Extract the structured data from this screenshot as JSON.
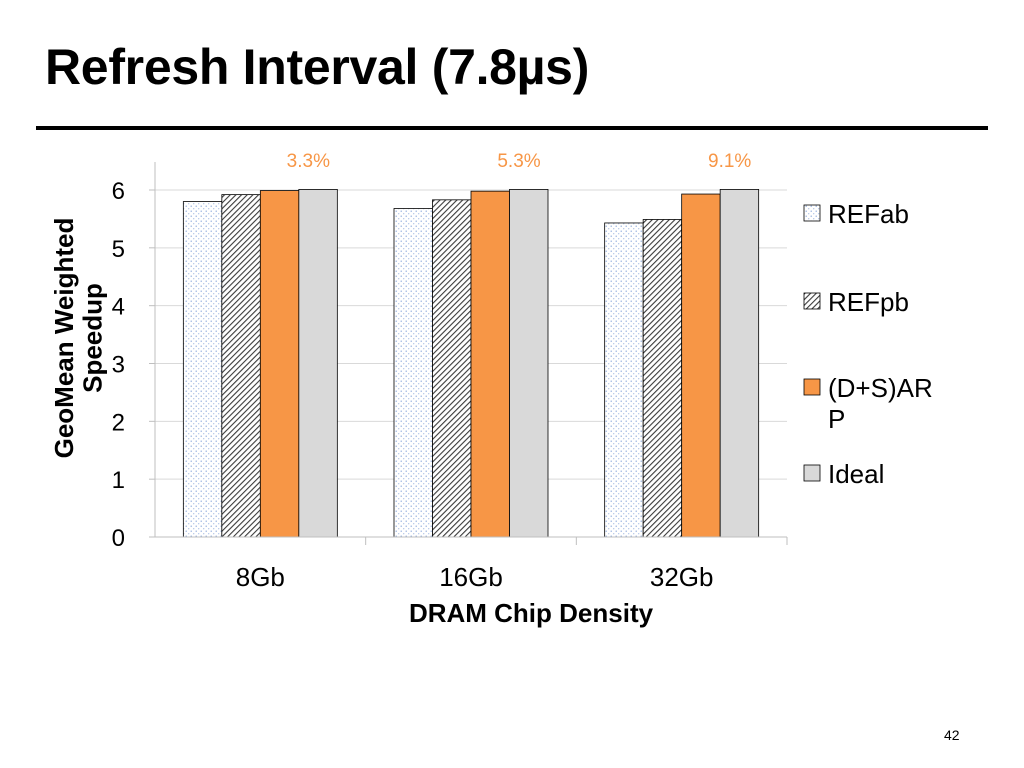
{
  "slide": {
    "title": "Refresh Interval (7.8µs)",
    "page_number": "42"
  },
  "colors": {
    "accent": "#f79646",
    "ideal": "#d9d9d9",
    "annotation": "#f79646"
  },
  "chart_data": {
    "type": "bar",
    "title": "",
    "xlabel": "DRAM Chip Density",
    "ylabel": "GeoMean Weighted Speedup",
    "categories": [
      "8Gb",
      "16Gb",
      "32Gb"
    ],
    "ylim": [
      0,
      6
    ],
    "yticks": [
      "0",
      "1",
      "2",
      "3",
      "4",
      "5",
      "6"
    ],
    "grid": true,
    "legend_position": "right",
    "series": [
      {
        "name": "REFab",
        "values": [
          5.8,
          5.68,
          5.43
        ],
        "pattern": "dots",
        "color": "#dbe5f1"
      },
      {
        "name": "REFpb",
        "values": [
          5.92,
          5.83,
          5.49
        ],
        "pattern": "hatch",
        "color": "#595959"
      },
      {
        "name": "(D+S)ARP",
        "values": [
          5.99,
          5.98,
          5.93
        ],
        "pattern": "solid",
        "color": "#f79646"
      },
      {
        "name": "Ideal",
        "values": [
          6.01,
          6.01,
          6.01
        ],
        "pattern": "solid",
        "color": "#d9d9d9"
      }
    ],
    "annotations": [
      "3.3%",
      "5.3%",
      "9.1%"
    ]
  }
}
